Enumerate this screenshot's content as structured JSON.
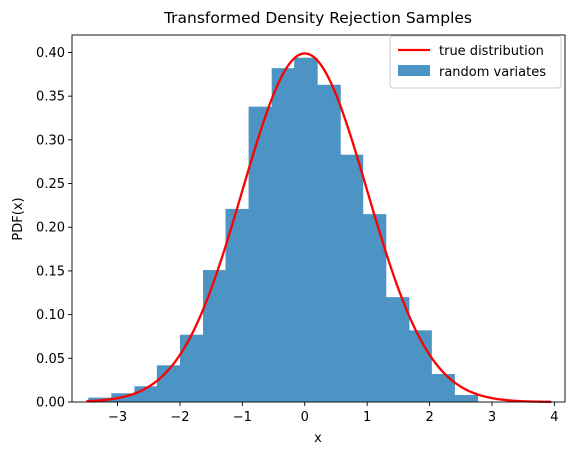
{
  "chart_data": {
    "type": "bar",
    "title": "Transformed Density Rejection Samples",
    "xlabel": "x",
    "ylabel": "PDF(x)",
    "xlim": [
      -3.73,
      4.17
    ],
    "ylim": [
      0,
      0.42
    ],
    "xticks": [
      -3,
      -2,
      -1,
      0,
      1,
      2,
      3,
      4
    ],
    "xtick_labels": [
      "−3",
      "−2",
      "−1",
      "0",
      "1",
      "2",
      "3",
      "4"
    ],
    "yticks": [
      0,
      0.05,
      0.1,
      0.15,
      0.2,
      0.25,
      0.3,
      0.35,
      0.4
    ],
    "ytick_labels": [
      "0.00",
      "0.05",
      "0.10",
      "0.15",
      "0.20",
      "0.25",
      "0.30",
      "0.35",
      "0.40"
    ],
    "grid": false,
    "legend_position": "top-right",
    "histogram": {
      "name": "random variates",
      "color": "#4c94c4",
      "bin_edges": [
        -3.47,
        -3.1,
        -2.73,
        -2.37,
        -2.0,
        -1.63,
        -1.27,
        -0.9,
        -0.53,
        -0.17,
        0.2,
        0.57,
        0.93,
        1.3,
        1.67,
        2.03,
        2.4,
        2.77
      ],
      "values": [
        0.005,
        0.01,
        0.018,
        0.042,
        0.077,
        0.151,
        0.221,
        0.338,
        0.382,
        0.394,
        0.363,
        0.283,
        0.215,
        0.12,
        0.082,
        0.032,
        0.008
      ]
    },
    "curve": {
      "name": "true distribution",
      "color": "#ff0000",
      "function": "standard normal pdf",
      "x_range": [
        -3.5,
        3.95
      ]
    }
  }
}
